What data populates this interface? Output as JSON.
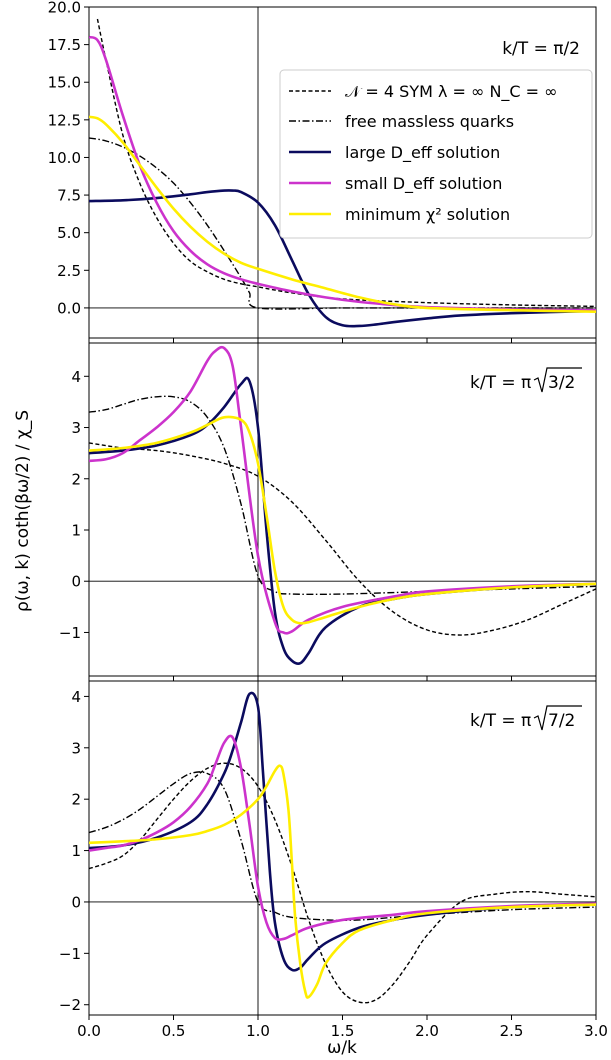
{
  "figure": {
    "ylabel": "ρ(ω, k) coth(βω/2) / χ_S",
    "xlabel": "ω/k"
  },
  "legend": {
    "entries": [
      {
        "key": "sym",
        "text": "𝒩 = 4 SYM λ = ∞ N_C = ∞"
      },
      {
        "key": "free",
        "text": "free massless quarks"
      },
      {
        "key": "large",
        "text": "large D_eff solution"
      },
      {
        "key": "small",
        "text": "small D_eff solution"
      },
      {
        "key": "chi2",
        "text": "minimum χ² solution"
      }
    ]
  },
  "styles": {
    "sym": {
      "color": "#000000",
      "dash": "4,2.5",
      "width": 1.4
    },
    "free": {
      "color": "#000000",
      "dash": "7,2.5,1.5,2.5",
      "width": 1.4
    },
    "large": {
      "color": "#0b0b5e",
      "dash": "",
      "width": 2.6
    },
    "small": {
      "color": "#cc33cc",
      "dash": "",
      "width": 2.6
    },
    "chi2": {
      "color": "#ffee00",
      "dash": "",
      "width": 2.6
    }
  },
  "chart_data": [
    {
      "type": "line",
      "annotation": "k/T = π/2",
      "xlim": [
        0,
        3.0
      ],
      "ylim": [
        -2.0,
        20.0
      ],
      "xticks": [
        "0.0",
        "0.5",
        "1.0",
        "1.5",
        "2.0",
        "2.5",
        "3.0"
      ],
      "yticks": [
        0.0,
        2.5,
        5.0,
        7.5,
        10.0,
        12.5,
        15.0,
        17.5,
        20.0
      ],
      "ytick_labels": [
        "0.0",
        "2.5",
        "5.0",
        "7.5",
        "10.0",
        "12.5",
        "15.0",
        "17.5",
        "20.0"
      ],
      "legend_position": "upper-right",
      "series": [
        {
          "key": "sym",
          "name": "𝒩 = 4 SYM λ = ∞ N_C = ∞",
          "x": [
            0.05,
            0.1,
            0.2,
            0.3,
            0.4,
            0.5,
            0.6,
            0.7,
            0.8,
            0.9,
            1.0,
            1.2,
            1.5,
            2.0,
            2.5,
            3.0
          ],
          "y": [
            19.2,
            16.5,
            11.5,
            8.3,
            6.0,
            4.3,
            3.1,
            2.4,
            1.9,
            1.6,
            1.4,
            1.0,
            0.6,
            0.35,
            0.2,
            0.1
          ]
        },
        {
          "key": "free",
          "name": "free massless quarks",
          "x": [
            0.0,
            0.1,
            0.2,
            0.3,
            0.4,
            0.5,
            0.6,
            0.7,
            0.8,
            0.9,
            0.95,
            1.0,
            1.5,
            2.0,
            2.5,
            3.0
          ],
          "y": [
            11.3,
            11.1,
            10.7,
            10.1,
            9.3,
            8.3,
            7.0,
            5.5,
            3.8,
            2.0,
            1.0,
            0.0,
            0.0,
            0.0,
            0.0,
            0.0
          ]
        },
        {
          "key": "large",
          "name": "large D_eff solution",
          "x": [
            0.0,
            0.2,
            0.4,
            0.6,
            0.7,
            0.8,
            0.85,
            0.9,
            1.0,
            1.1,
            1.2,
            1.3,
            1.4,
            1.5,
            1.6,
            1.7,
            1.8,
            2.0,
            2.2,
            2.5,
            3.0
          ],
          "y": [
            7.1,
            7.15,
            7.3,
            7.55,
            7.7,
            7.8,
            7.8,
            7.7,
            7.0,
            5.5,
            3.2,
            0.9,
            -0.6,
            -1.15,
            -1.2,
            -1.1,
            -0.95,
            -0.7,
            -0.5,
            -0.35,
            -0.2
          ]
        },
        {
          "key": "small",
          "name": "small D_eff solution",
          "x": [
            0.0,
            0.05,
            0.1,
            0.2,
            0.3,
            0.4,
            0.5,
            0.6,
            0.7,
            0.8,
            0.9,
            1.0,
            1.2,
            1.4,
            1.6,
            1.8,
            2.0,
            2.5,
            3.0
          ],
          "y": [
            18.0,
            17.8,
            16.5,
            12.8,
            9.5,
            7.0,
            5.1,
            3.8,
            2.9,
            2.3,
            1.9,
            1.6,
            1.1,
            0.7,
            0.4,
            0.2,
            0.05,
            -0.1,
            -0.15
          ]
        },
        {
          "key": "chi2",
          "name": "minimum χ² solution",
          "x": [
            0.0,
            0.05,
            0.1,
            0.2,
            0.3,
            0.4,
            0.5,
            0.6,
            0.7,
            0.8,
            0.9,
            1.0,
            1.2,
            1.4,
            1.6,
            1.8,
            2.0,
            2.5,
            3.0
          ],
          "y": [
            12.7,
            12.6,
            12.2,
            11.0,
            9.5,
            8.0,
            6.6,
            5.4,
            4.4,
            3.6,
            3.0,
            2.6,
            1.9,
            1.3,
            0.7,
            0.25,
            0.0,
            -0.15,
            -0.25
          ]
        }
      ]
    },
    {
      "type": "line",
      "annotation_prefix": "k/T = π",
      "annotation_radicand": "3/2",
      "xlim": [
        0,
        3.0
      ],
      "ylim": [
        -1.85,
        4.65
      ],
      "yticks": [
        -1,
        0,
        1,
        2,
        3,
        4
      ],
      "ytick_labels": [
        "−1",
        "0",
        "1",
        "2",
        "3",
        "4"
      ],
      "series": [
        {
          "key": "sym",
          "name": "𝒩 = 4 SYM λ = ∞ N_C = ∞",
          "x": [
            0.0,
            0.2,
            0.4,
            0.6,
            0.8,
            1.0,
            1.2,
            1.4,
            1.6,
            1.8,
            2.0,
            2.2,
            2.4,
            2.6,
            2.8,
            3.0
          ],
          "y": [
            2.7,
            2.6,
            2.55,
            2.45,
            2.3,
            2.05,
            1.55,
            0.8,
            0.0,
            -0.6,
            -0.95,
            -1.05,
            -0.95,
            -0.75,
            -0.45,
            -0.15
          ]
        },
        {
          "key": "free",
          "name": "free massless quarks",
          "x": [
            0.0,
            0.1,
            0.2,
            0.3,
            0.4,
            0.5,
            0.6,
            0.7,
            0.8,
            0.9,
            1.0,
            1.1,
            1.2,
            1.5,
            2.0,
            2.5,
            3.0
          ],
          "y": [
            3.3,
            3.35,
            3.45,
            3.55,
            3.6,
            3.6,
            3.5,
            3.2,
            2.6,
            1.5,
            0.1,
            -0.2,
            -0.25,
            -0.25,
            -0.2,
            -0.15,
            -0.1
          ]
        },
        {
          "key": "large",
          "name": "large D_eff solution",
          "x": [
            0.0,
            0.2,
            0.4,
            0.6,
            0.7,
            0.8,
            0.9,
            0.95,
            1.0,
            1.05,
            1.1,
            1.15,
            1.2,
            1.25,
            1.3,
            1.4,
            1.6,
            1.8,
            2.0,
            2.5,
            3.0
          ],
          "y": [
            2.5,
            2.55,
            2.65,
            2.85,
            3.05,
            3.4,
            3.85,
            3.9,
            3.0,
            1.0,
            -0.6,
            -1.3,
            -1.55,
            -1.6,
            -1.4,
            -0.9,
            -0.5,
            -0.35,
            -0.25,
            -0.12,
            -0.05
          ]
        },
        {
          "key": "small",
          "name": "small D_eff solution",
          "x": [
            0.0,
            0.1,
            0.2,
            0.3,
            0.4,
            0.5,
            0.6,
            0.7,
            0.75,
            0.8,
            0.85,
            0.9,
            1.0,
            1.1,
            1.15,
            1.2,
            1.3,
            1.5,
            1.8,
            2.0,
            2.5,
            3.0
          ],
          "y": [
            2.35,
            2.38,
            2.5,
            2.75,
            3.0,
            3.3,
            3.7,
            4.3,
            4.5,
            4.55,
            4.2,
            3.0,
            0.5,
            -0.8,
            -1.0,
            -0.98,
            -0.75,
            -0.5,
            -0.3,
            -0.2,
            -0.1,
            -0.05
          ]
        },
        {
          "key": "chi2",
          "name": "minimum χ² solution",
          "x": [
            0.0,
            0.2,
            0.4,
            0.6,
            0.7,
            0.8,
            0.9,
            0.95,
            1.0,
            1.05,
            1.1,
            1.15,
            1.2,
            1.25,
            1.3,
            1.4,
            1.6,
            1.8,
            2.0,
            2.5,
            3.0
          ],
          "y": [
            2.55,
            2.6,
            2.7,
            2.9,
            3.05,
            3.2,
            3.15,
            2.9,
            2.3,
            1.3,
            0.2,
            -0.5,
            -0.75,
            -0.82,
            -0.8,
            -0.7,
            -0.5,
            -0.35,
            -0.25,
            -0.12,
            -0.05
          ]
        }
      ]
    },
    {
      "type": "line",
      "annotation_prefix": "k/T = π",
      "annotation_radicand": "7/2",
      "xlim": [
        0,
        3.0
      ],
      "ylim": [
        -2.2,
        4.3
      ],
      "yticks": [
        -2,
        -1,
        0,
        1,
        2,
        3,
        4
      ],
      "ytick_labels": [
        "−2",
        "−1",
        "0",
        "1",
        "2",
        "3",
        "4"
      ],
      "series": [
        {
          "key": "sym",
          "name": "𝒩 = 4 SYM λ = ∞ N_C = ∞",
          "x": [
            0.0,
            0.1,
            0.2,
            0.3,
            0.4,
            0.5,
            0.6,
            0.7,
            0.8,
            0.9,
            1.0,
            1.1,
            1.2,
            1.3,
            1.4,
            1.5,
            1.6,
            1.7,
            1.8,
            1.9,
            2.0,
            2.2,
            2.4,
            2.6,
            2.8,
            3.0
          ],
          "y": [
            0.65,
            0.75,
            0.9,
            1.2,
            1.6,
            2.0,
            2.35,
            2.6,
            2.7,
            2.6,
            2.25,
            1.6,
            0.7,
            -0.35,
            -1.2,
            -1.75,
            -1.95,
            -1.9,
            -1.6,
            -1.15,
            -0.65,
            0.0,
            0.15,
            0.2,
            0.15,
            0.1
          ]
        },
        {
          "key": "free",
          "name": "free massless quarks",
          "x": [
            0.0,
            0.1,
            0.2,
            0.3,
            0.4,
            0.5,
            0.6,
            0.7,
            0.8,
            0.9,
            1.0,
            1.1,
            1.2,
            1.4,
            1.6,
            1.8,
            2.0,
            2.5,
            3.0
          ],
          "y": [
            1.35,
            1.45,
            1.6,
            1.8,
            2.05,
            2.3,
            2.5,
            2.5,
            2.2,
            1.2,
            0.0,
            -0.2,
            -0.3,
            -0.35,
            -0.35,
            -0.3,
            -0.25,
            -0.15,
            -0.1
          ]
        },
        {
          "key": "large",
          "name": "large D_eff solution",
          "x": [
            0.0,
            0.2,
            0.4,
            0.6,
            0.7,
            0.8,
            0.85,
            0.9,
            0.95,
            1.0,
            1.03,
            1.07,
            1.1,
            1.15,
            1.2,
            1.25,
            1.3,
            1.4,
            1.6,
            1.8,
            2.0,
            2.5,
            3.0
          ],
          "y": [
            1.05,
            1.1,
            1.25,
            1.55,
            1.9,
            2.5,
            2.95,
            3.5,
            4.05,
            3.8,
            2.5,
            0.6,
            -0.4,
            -1.1,
            -1.32,
            -1.28,
            -1.1,
            -0.8,
            -0.5,
            -0.35,
            -0.25,
            -0.1,
            -0.05
          ]
        },
        {
          "key": "small",
          "name": "small D_eff solution",
          "x": [
            0.0,
            0.1,
            0.2,
            0.3,
            0.4,
            0.5,
            0.6,
            0.7,
            0.75,
            0.8,
            0.85,
            0.9,
            0.95,
            1.0,
            1.05,
            1.1,
            1.15,
            1.2,
            1.3,
            1.5,
            1.8,
            2.0,
            2.5,
            3.0
          ],
          "y": [
            1.0,
            1.05,
            1.1,
            1.2,
            1.35,
            1.55,
            1.85,
            2.3,
            2.7,
            3.1,
            3.2,
            2.6,
            1.5,
            0.3,
            -0.4,
            -0.7,
            -0.72,
            -0.65,
            -0.5,
            -0.35,
            -0.25,
            -0.18,
            -0.08,
            -0.03
          ]
        },
        {
          "key": "chi2",
          "name": "minimum χ² solution",
          "x": [
            0.0,
            0.2,
            0.4,
            0.6,
            0.7,
            0.8,
            0.9,
            1.0,
            1.05,
            1.1,
            1.13,
            1.15,
            1.18,
            1.2,
            1.22,
            1.25,
            1.28,
            1.3,
            1.35,
            1.4,
            1.5,
            1.6,
            1.8,
            2.0,
            2.5,
            3.0
          ],
          "y": [
            1.15,
            1.18,
            1.22,
            1.3,
            1.38,
            1.5,
            1.7,
            2.0,
            2.25,
            2.55,
            2.65,
            2.5,
            1.8,
            0.8,
            -0.3,
            -1.2,
            -1.75,
            -1.85,
            -1.6,
            -1.2,
            -0.8,
            -0.55,
            -0.35,
            -0.22,
            -0.1,
            -0.05
          ]
        }
      ]
    }
  ]
}
